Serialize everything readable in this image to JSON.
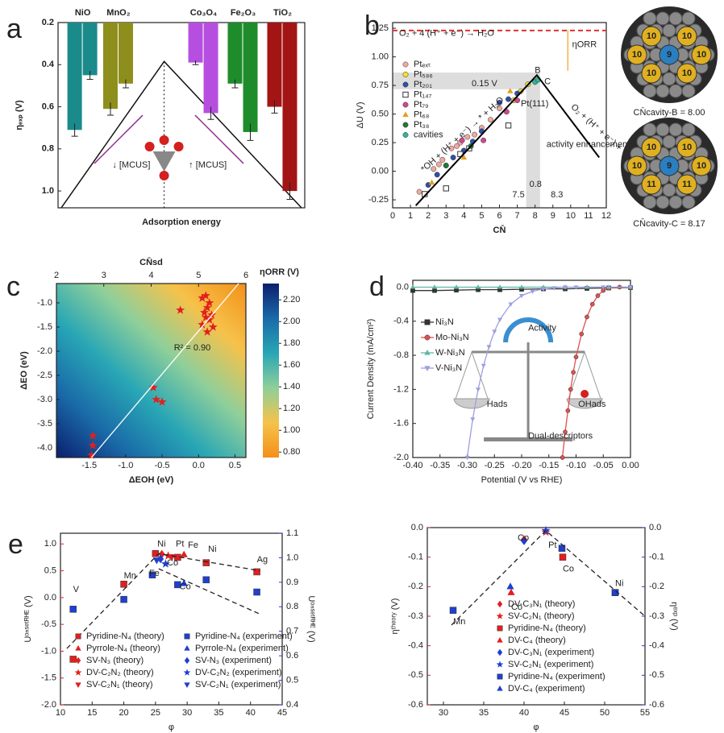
{
  "chart_data": [
    {
      "type": "bar",
      "panel": "a",
      "ylabel": "ηₑₓₚ (V)",
      "xlabel": "Adsorption energy",
      "categories": [
        "NiO",
        "MnO₂",
        "Co₃O₄",
        "Fe₂O₃",
        "TiO₂"
      ],
      "colors": [
        "#1b8a8a",
        "#8e8e1c",
        "#b64fe0",
        "#1e8c2a",
        "#a31515"
      ],
      "series": [
        {
          "values": [
            0.71,
            0.61,
            0.39,
            0.49,
            0.6
          ],
          "errors": [
            0.03,
            0.03,
            0.01,
            0.02,
            0.03
          ]
        },
        {
          "values": [
            0.45,
            0.49,
            0.63,
            0.72,
            1.0
          ],
          "errors": [
            0.02,
            0.02,
            0.03,
            0.04,
            0.04
          ]
        }
      ],
      "ylim": [
        1.08,
        0.2
      ],
      "yticks": [
        0.2,
        0.4,
        0.6,
        0.8,
        {
          "value": 1,
          "label": "1.0"
        }
      ],
      "annotations": [
        "↓ [MCUS]",
        "↑ [MCUS]"
      ]
    },
    {
      "type": "scatter",
      "panel": "b",
      "xlabel": "CN̄",
      "ylabel": "ΔU (V)",
      "xlim": [
        0,
        12
      ],
      "xticks": [
        0,
        1,
        2,
        3,
        4,
        5,
        6,
        7,
        8,
        9,
        10,
        11,
        12
      ],
      "ylim": [
        -0.32,
        1.3
      ],
      "yticks": [
        -0.25,
        {
          "value": 0,
          "label": "0.00"
        },
        0.25,
        {
          "value": 0.5,
          "label": "0.50"
        },
        0.75,
        {
          "value": 1,
          "label": "1.00"
        },
        1.25
      ],
      "series": [
        {
          "name": "Ptₑₓₜ",
          "color": "#f0a8a0",
          "marker": "circle",
          "x": [
            1.5,
            2.3,
            2.8,
            3.3,
            3.8,
            4.2,
            4.6,
            5.0,
            5.5,
            6.0,
            2.6,
            3.6
          ],
          "values": [
            -0.18,
            0.02,
            0.1,
            0.2,
            0.25,
            0.3,
            0.32,
            0.38,
            0.45,
            0.55,
            0.06,
            0.22
          ]
        },
        {
          "name": "Pt₅₈₆",
          "color": "#f5e02a",
          "marker": "circle",
          "x": [
            6.8,
            7.2,
            7.6
          ],
          "values": [
            0.62,
            0.7,
            0.76
          ]
        },
        {
          "name": "Pt₂₀₁",
          "color": "#2f4fa8",
          "marker": "circle",
          "x": [
            2.0,
            2.5,
            3.0,
            3.4,
            4.0,
            4.5,
            5.0,
            6.0,
            6.5,
            7.0
          ],
          "values": [
            -0.12,
            -0.03,
            0.05,
            0.12,
            0.18,
            0.26,
            0.35,
            0.6,
            0.63,
            0.68
          ]
        },
        {
          "name": "Pt₁₄₇",
          "color": "#ffffff",
          "marker": "open-square",
          "x": [
            1.8,
            3.0,
            3.8,
            4.3,
            6.5
          ],
          "values": [
            -0.2,
            -0.15,
            0.15,
            0.2,
            0.4
          ]
        },
        {
          "name": "Pt₇₉",
          "color": "#d04890",
          "marker": "circle",
          "x": [
            3.9,
            5.1,
            6.4,
            7.0
          ],
          "values": [
            0.27,
            0.27,
            0.52,
            0.62
          ]
        },
        {
          "name": "Pt₆₈",
          "color": "#e0a020",
          "marker": "triangle",
          "x": [
            2.2,
            4.0,
            6.6
          ],
          "values": [
            -0.1,
            0.12,
            0.7
          ]
        },
        {
          "name": "Pt₃₈",
          "color": "#1e7a3a",
          "marker": "circle",
          "x": [
            3.0,
            4.4
          ],
          "values": [
            0.05,
            0.22
          ]
        },
        {
          "name": "cavities",
          "color": "#2fb59a",
          "marker": "circle",
          "x": [
            8.0,
            8.17
          ],
          "values": [
            0.78,
            0.8
          ]
        },
        {
          "color": "#000000",
          "line": true,
          "x": [
            1.3,
            8.1,
            11.6
          ],
          "values": [
            -0.3,
            0.84,
            0.12
          ]
        },
        {
          "color": "#e03030",
          "line": true,
          "dash": true,
          "x": [
            0,
            12
          ],
          "values": [
            1.23,
            1.23
          ]
        }
      ],
      "annotations": [
        "O₂ + 4 (H⁺ + e⁻) → H₂O",
        "0.15 V",
        "B",
        "C",
        "Pt(111)",
        "ηORR",
        "activity enhancement",
        "0.8",
        "7.5",
        "8.3",
        "*OH + (H⁺ + e⁻) → * + H₂O",
        "O₂ + (H⁺ + e⁻) + * → *OOH"
      ],
      "images": [
        {
          "labels": [
            "10",
            "10",
            "10",
            "9",
            "10",
            "10",
            "10"
          ],
          "caption": "CN̄cavity-B = 8.00"
        },
        {
          "labels": [
            "10",
            "10",
            "10",
            "9",
            "10",
            "11",
            "11"
          ],
          "caption": "CN̄cavity-C = 8.17"
        }
      ]
    },
    {
      "type": "heatmap",
      "panel": "c",
      "xlabel": "ΔEOH (eV)",
      "ylabel": "ΔEO (eV)",
      "x2label": "CN̄sd",
      "clabel": "ηORR (V)",
      "xlim": [
        -1.95,
        0.65
      ],
      "xticks": [
        -1.5,
        {
          "value": -1,
          "label": "-1.0"
        },
        -0.5,
        {
          "value": 0,
          "label": "0.0"
        },
        0.5
      ],
      "ylim": [
        -4.2,
        -0.6
      ],
      "yticks": [
        {
          "value": -1,
          "label": "-1.0"
        },
        -1.5,
        {
          "value": -2,
          "label": "-2.0"
        },
        -2.5,
        {
          "value": -3,
          "label": "-3.0"
        },
        -3.5,
        {
          "value": -4,
          "label": "-4.0"
        }
      ],
      "x2lim": [
        2,
        6
      ],
      "x2ticks": [
        2,
        3,
        4,
        5,
        6
      ],
      "clim": [
        0.75,
        2.35
      ],
      "cticks": [
        {
          "value": 0.8,
          "label": "0.80"
        },
        {
          "value": 1,
          "label": "1.00"
        },
        {
          "value": 1.2,
          "label": "1.20"
        },
        {
          "value": 1.4,
          "label": "1.40"
        },
        {
          "value": 1.6,
          "label": "1.60"
        },
        {
          "value": 1.8,
          "label": "1.80"
        },
        {
          "value": 2,
          "label": "2.00"
        },
        {
          "value": 2.2,
          "label": "2.20"
        }
      ],
      "colormap": [
        "#f39019",
        "#f6c24a",
        "#8fcf9a",
        "#28a6b5",
        "#1a6aa8",
        "#0b1f6e"
      ],
      "series": [
        {
          "color": "#e02020",
          "marker": "star",
          "x": [
            -0.25,
            0.05,
            0.1,
            0.15,
            0.12,
            0.08,
            0.18,
            0.1,
            0.15,
            0.05,
            0.2,
            0.12,
            -0.62,
            -0.58,
            -0.5,
            -1.45,
            -1.45,
            -1.47
          ],
          "values": [
            -1.15,
            -0.9,
            -0.85,
            -1.0,
            -1.1,
            -1.2,
            -1.25,
            -1.3,
            -1.35,
            -1.45,
            -1.5,
            -1.6,
            -2.75,
            -3.0,
            -3.05,
            -3.75,
            -3.95,
            -4.15
          ]
        },
        {
          "color": "#ffffff",
          "line": true,
          "x": [
            -1.47,
            0.55
          ],
          "values": [
            -4.2,
            -0.6
          ]
        }
      ],
      "annotations": [
        "R² = 0.90"
      ]
    },
    {
      "type": "line",
      "panel": "d",
      "xlabel": "Potential (V vs RHE)",
      "ylabel": "Current Density (mA/cm²)",
      "xlim": [
        -0.4,
        0
      ],
      "xticks": [
        {
          "value": -0.4,
          "label": "-0.40"
        },
        -0.35,
        {
          "value": -0.3,
          "label": "-0.30"
        },
        -0.25,
        {
          "value": -0.2,
          "label": "-0.20"
        },
        -0.15,
        {
          "value": -0.1,
          "label": "-0.10"
        },
        -0.05,
        {
          "value": 0,
          "label": "0.00"
        }
      ],
      "ylim": [
        -2,
        0.08
      ],
      "yticks": [
        {
          "value": -2,
          "label": "-2.0"
        },
        -1.6,
        -1.2,
        -0.8,
        -0.4,
        {
          "value": 0,
          "label": "0.0"
        }
      ],
      "series": [
        {
          "name": "Ni₃N",
          "color": "#333333",
          "marker": "square",
          "line": true,
          "x": [
            -0.4,
            -0.36,
            -0.32,
            -0.28,
            -0.24,
            -0.2,
            -0.16,
            -0.12,
            -0.08,
            -0.04,
            0
          ],
          "values": [
            -0.04,
            -0.04,
            -0.035,
            -0.03,
            -0.03,
            -0.025,
            -0.02,
            -0.02,
            -0.015,
            -0.01,
            -0.005
          ]
        },
        {
          "name": "Mo-Ni₃N",
          "color": "#e05050",
          "marker": "circle",
          "line": true,
          "x": [
            -0.125,
            -0.12,
            -0.115,
            -0.11,
            -0.105,
            -0.1,
            -0.09,
            -0.08,
            -0.07,
            -0.06,
            -0.05,
            -0.04,
            -0.02,
            0
          ],
          "values": [
            -2,
            -1.7,
            -1.45,
            -1.2,
            -1,
            -0.82,
            -0.55,
            -0.35,
            -0.2,
            -0.1,
            -0.04,
            -0.01,
            0,
            0
          ]
        },
        {
          "name": "W-Ni₃N",
          "color": "#5fb8a8",
          "marker": "triangle",
          "line": true,
          "x": [
            -0.4,
            -0.36,
            -0.32,
            -0.28,
            -0.24,
            -0.2,
            -0.16,
            -0.12,
            -0.08,
            -0.04,
            0
          ],
          "values": [
            0,
            0,
            0,
            0,
            0,
            0,
            0,
            0,
            0,
            0,
            0
          ]
        },
        {
          "name": "V-Ni₃N",
          "color": "#9f9fe0",
          "marker": "triangle-down",
          "line": true,
          "x": [
            -0.3,
            -0.29,
            -0.28,
            -0.27,
            -0.26,
            -0.25,
            -0.24,
            -0.22,
            -0.2,
            -0.18,
            -0.16,
            -0.14,
            -0.12,
            -0.1,
            -0.05,
            0
          ],
          "values": [
            -2,
            -1.55,
            -1.2,
            -0.92,
            -0.7,
            -0.52,
            -0.38,
            -0.2,
            -0.1,
            -0.05,
            -0.02,
            -0.01,
            0,
            0,
            0,
            0
          ]
        }
      ],
      "annotations": [
        "Activity",
        "Hads",
        "OHads",
        "Dual-descriptors"
      ]
    },
    {
      "type": "scatter",
      "panel": "e",
      "xlabel": "φ",
      "ylabel": "Uᵒⁿˢᵉᵗᴿᴴᴱ (V)",
      "y2label": "Uᵒⁿˢᵉᵗᴿᴴᴱ (V)",
      "xlim": [
        10,
        45
      ],
      "xticks": [
        10,
        15,
        20,
        25,
        30,
        35,
        40,
        45
      ],
      "ylim": [
        -2,
        1.2
      ],
      "yticks": [
        {
          "value": -2,
          "label": "-2.0"
        },
        -1.5,
        {
          "value": -1,
          "label": "-1.0"
        },
        -0.5,
        {
          "value": 0,
          "label": "0.0"
        },
        0.5,
        {
          "value": 1,
          "label": "1.0"
        }
      ],
      "y2lim": [
        0.4,
        1.1
      ],
      "y2ticks": [
        0.4,
        0.5,
        0.6,
        0.7,
        0.8,
        0.9,
        {
          "value": 1,
          "label": "1.0"
        },
        1.1
      ],
      "series": [
        {
          "name": "Pyridine-N₄ (theory)",
          "color": "#e02020",
          "marker": "square",
          "x": [
            12,
            20,
            25,
            28.5,
            33,
            41
          ],
          "values": [
            -1.15,
            0.25,
            0.82,
            0.75,
            0.65,
            0.48
          ]
        },
        {
          "name": "Pyrrole-N₄ (theory)",
          "color": "#e02020",
          "marker": "triangle",
          "x": [
            29.5
          ],
          "values": [
            0.8
          ]
        },
        {
          "name": "SV-N₃ (theory)",
          "color": "#e02020",
          "marker": "diamond",
          "x": [
            26
          ],
          "values": [
            0.81
          ]
        },
        {
          "name": "DV-C₂N₂ (theory)",
          "color": "#e02020",
          "marker": "star",
          "x": [
            27
          ],
          "values": [
            0.78
          ]
        },
        {
          "name": "SV-C₂N₁ (theory)",
          "color": "#e02020",
          "marker": "triangle-down",
          "x": [
            27.6
          ],
          "values": [
            0.76
          ]
        },
        {
          "name": "Pyridine-N₄ (experiment)",
          "color": "#1f3fd0",
          "marker": "square",
          "axis": "y2",
          "x": [
            12,
            20,
            24.5,
            28.5,
            33,
            41
          ],
          "values": [
            0.79,
            0.83,
            0.93,
            0.89,
            0.91,
            0.86
          ]
        },
        {
          "name": "Pyrrole-N₄ (experiment)",
          "color": "#1f3fd0",
          "marker": "triangle",
          "axis": "y2",
          "x": [
            29.5
          ],
          "values": [
            0.895
          ]
        },
        {
          "name": "SV-N₃ (experiment)",
          "color": "#1f3fd0",
          "marker": "diamond",
          "axis": "y2",
          "x": [
            25.8
          ],
          "values": [
            0.995
          ]
        },
        {
          "name": "DV-C₂N₂ (experiment)",
          "color": "#1f3fd0",
          "marker": "star",
          "axis": "y2",
          "x": [
            26.6
          ],
          "values": [
            0.975
          ]
        },
        {
          "name": "SV-C₂N₁ (experiment)",
          "color": "#1f3fd0",
          "marker": "triangle-down",
          "axis": "y2",
          "x": [
            25.2
          ],
          "values": [
            0.99
          ]
        },
        {
          "color": "#222222",
          "line": true,
          "dash": true,
          "x": [
            11,
            25.5,
            41.5
          ],
          "values": [
            -0.95,
            0.82,
            0.5
          ]
        },
        {
          "color": "#222222",
          "line": true,
          "dash": true,
          "axis": "y2",
          "x": [
            25.5,
            41.5
          ],
          "values": [
            0.955,
            0.77
          ]
        }
      ],
      "annotations": [
        "V",
        "Mn",
        "Fe",
        "Ni",
        "Co",
        "Pt",
        "Fe",
        "Co",
        "Ni",
        "Ag"
      ]
    },
    {
      "type": "scatter",
      "xlabel": "φ",
      "ylabel": "ηᵗʰᵉᵒʳʸ (V)",
      "y2label": "ηᵉˣᵖ (V)",
      "xlim": [
        28,
        55
      ],
      "xticks": [
        30,
        35,
        40,
        45,
        50,
        55
      ],
      "ylim": [
        -0.6,
        0
      ],
      "yticks": [
        -0.6,
        -0.5,
        -0.4,
        -0.3,
        -0.2,
        -0.1,
        {
          "value": 0,
          "label": "0.0"
        }
      ],
      "y2lim": [
        -0.6,
        0
      ],
      "y2ticks": [
        -0.6,
        -0.5,
        -0.4,
        -0.3,
        -0.2,
        -0.1,
        {
          "value": 0,
          "label": "0.0"
        }
      ],
      "series": [
        {
          "name": "DV-C₃N₁ (theory)",
          "color": "#e02020",
          "marker": "diamond",
          "x": [
            40
          ],
          "values": [
            -0.04
          ]
        },
        {
          "name": "SV-C₂N₁ (theory)",
          "color": "#e02020",
          "marker": "star",
          "x": [
            42.7
          ],
          "values": [
            -0.015
          ]
        },
        {
          "name": "Pyridine-N₄ (theory)",
          "color": "#e02020",
          "marker": "square",
          "x": [
            44.8,
            51.3
          ],
          "values": [
            -0.1,
            -0.22
          ]
        },
        {
          "name": "DV-C₄ (theory)",
          "color": "#e02020",
          "marker": "triangle",
          "x": [
            38.4
          ],
          "values": [
            -0.22
          ]
        },
        {
          "name": "DV-C₃N₁ (experiment)",
          "color": "#1f3fd0",
          "marker": "diamond",
          "axis": "y2",
          "x": [
            40
          ],
          "values": [
            -0.045
          ]
        },
        {
          "name": "SV-C₂N₁ (experiment)",
          "color": "#1f3fd0",
          "marker": "star",
          "axis": "y2",
          "x": [
            42.7
          ],
          "values": [
            -0.01
          ]
        },
        {
          "name": "Pyridine-N₄ (experiment)",
          "color": "#1f3fd0",
          "marker": "square",
          "axis": "y2",
          "x": [
            31.2,
            44.7,
            51.3
          ],
          "values": [
            -0.28,
            -0.07,
            -0.22
          ]
        },
        {
          "name": "DV-C₄ (experiment)",
          "color": "#1f3fd0",
          "marker": "triangle",
          "axis": "y2",
          "x": [
            38.3
          ],
          "values": [
            -0.2
          ]
        },
        {
          "color": "#222222",
          "line": true,
          "dash": true,
          "x": [
            31,
            42.7,
            55
          ],
          "values": [
            -0.33,
            -0.01,
            -0.3
          ]
        }
      ],
      "annotations": [
        "Co",
        "Pt",
        "Co",
        "Co",
        "Ni",
        "Mn"
      ]
    }
  ]
}
